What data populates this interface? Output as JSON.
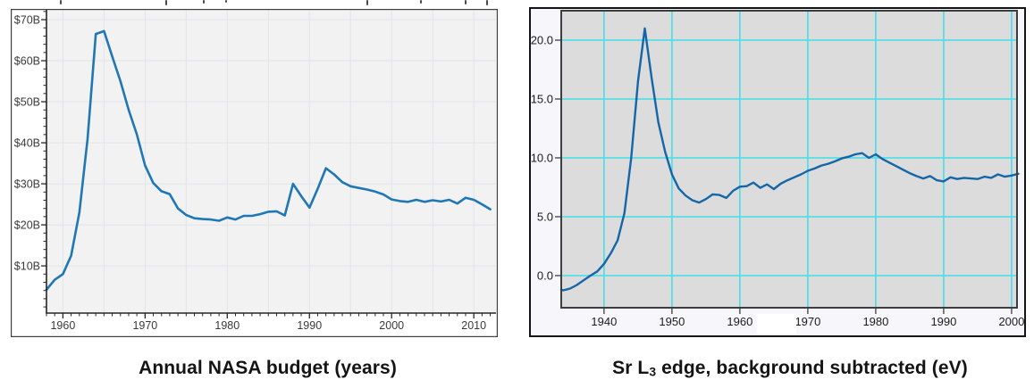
{
  "page": {
    "background": "#ffffff"
  },
  "captions": {
    "left": "Annual NASA budget (years)",
    "right_pre": "Sr L",
    "right_sub": "3",
    "right_post": " edge, background subtracted (eV)"
  },
  "chart_data": [
    {
      "type": "line",
      "title": "Annual NASA budget (years)",
      "xlabel": "",
      "ylabel": "",
      "xlim": [
        1958,
        2012.7
      ],
      "ylim": [
        -1.5,
        72.4
      ],
      "grid": "on",
      "legend": "none",
      "x_ticks": {
        "values": [
          1960,
          1970,
          1980,
          1990,
          2000,
          2010
        ],
        "labels": [
          "1960",
          "1970",
          "1980",
          "1990",
          "2000",
          "2010"
        ]
      },
      "y_ticks": {
        "values": [
          10,
          20,
          30,
          40,
          50,
          60,
          70
        ],
        "labels": [
          "$10B",
          "$20B",
          "$30B",
          "$40B",
          "$50B",
          "$60B",
          "$70B"
        ]
      },
      "x_minor_step": 1,
      "y_minor_step": 2,
      "x_grid_step": 5,
      "colors": {
        "line": "#1f77b4",
        "plot_bg": "#f2f2f3",
        "grid": "#e4e4e8",
        "axis": "#262626",
        "panel_bg": "#ffffff",
        "panel_border": "#3f3f3f",
        "tick_text": "#3a3a3a"
      },
      "series": [
        {
          "x": [
            1958,
            1959,
            1960,
            1961,
            1962,
            1963,
            1964,
            1965,
            1966,
            1967,
            1968,
            1969,
            1970,
            1971,
            1972,
            1973,
            1974,
            1975,
            1976,
            1977,
            1978,
            1979,
            1980,
            1981,
            1982,
            1983,
            1984,
            1985,
            1986,
            1987,
            1988,
            1989,
            1990,
            1991,
            1992,
            1993,
            1994,
            1995,
            1996,
            1997,
            1998,
            1999,
            2000,
            2001,
            2002,
            2003,
            2004,
            2005,
            2006,
            2007,
            2008,
            2009,
            2010,
            2011,
            2012
          ],
          "y": [
            4.2,
            6.6,
            8.0,
            12.5,
            23.0,
            41.0,
            66.5,
            67.2,
            61.0,
            55.0,
            48.0,
            42.0,
            34.5,
            30.2,
            28.2,
            27.5,
            24.0,
            22.4,
            21.6,
            21.4,
            21.3,
            21.0,
            21.8,
            21.3,
            22.2,
            22.2,
            22.6,
            23.2,
            23.3,
            22.3,
            30.0,
            27.0,
            24.2,
            28.8,
            33.8,
            32.3,
            30.4,
            29.4,
            29.0,
            28.6,
            28.1,
            27.4,
            26.2,
            25.8,
            25.6,
            26.1,
            25.6,
            26.0,
            25.7,
            26.1,
            25.2,
            26.6,
            26.1,
            25.0,
            23.8
          ]
        }
      ]
    },
    {
      "type": "line",
      "title": "Sr L3 edge, background subtracted (eV)",
      "xlabel": "",
      "ylabel": "",
      "xlim": [
        1933.7,
        2000.8
      ],
      "ylim": [
        -2.73,
        22.5
      ],
      "grid": "on",
      "legend": "none",
      "x_ticks": {
        "values": [
          1940,
          1950,
          1960,
          1970,
          1980,
          1990,
          2000
        ],
        "labels": [
          "1940",
          "1950",
          "1960",
          "1970",
          "1980",
          "1990",
          "2000"
        ]
      },
      "y_ticks": {
        "values": [
          0,
          5,
          10,
          15,
          20
        ],
        "labels": [
          "0.0",
          "5.0",
          "10.0",
          "15.0",
          "20.0"
        ]
      },
      "x_minor_step": 0,
      "y_minor_step": 0,
      "x_grid_step": 10,
      "colors": {
        "line": "#1566a8",
        "plot_bg": "#dcdcdc",
        "grid": "#55dee6",
        "axis": "#3d3d3d",
        "panel_bg": "#f7f7fb",
        "panel_border": "#141414",
        "tick_text": "#1c1c1c"
      },
      "series": [
        {
          "x": [
            1933.7,
            1934,
            1935,
            1936,
            1937,
            1938,
            1939,
            1940,
            1941,
            1942,
            1943,
            1944,
            1945,
            1946,
            1947,
            1948,
            1949,
            1950,
            1951,
            1952,
            1953,
            1954,
            1955,
            1956,
            1957,
            1958,
            1959,
            1960,
            1961,
            1962,
            1963,
            1964,
            1965,
            1966,
            1967,
            1968,
            1969,
            1970,
            1971,
            1972,
            1973,
            1974,
            1975,
            1976,
            1977,
            1978,
            1979,
            1980,
            1981,
            1982,
            1983,
            1984,
            1985,
            1986,
            1987,
            1988,
            1989,
            1990,
            1991,
            1992,
            1993,
            1994,
            1995,
            1996,
            1997,
            1998,
            1999,
            2000,
            2001
          ],
          "y": [
            -1.2,
            -1.25,
            -1.1,
            -0.8,
            -0.4,
            0.0,
            0.35,
            1.0,
            1.9,
            3.0,
            5.3,
            10.0,
            16.5,
            21.0,
            16.8,
            13.0,
            10.5,
            8.6,
            7.4,
            6.8,
            6.4,
            6.2,
            6.5,
            6.9,
            6.85,
            6.6,
            7.2,
            7.55,
            7.6,
            7.9,
            7.45,
            7.75,
            7.35,
            7.8,
            8.1,
            8.35,
            8.6,
            8.9,
            9.1,
            9.35,
            9.5,
            9.7,
            9.95,
            10.1,
            10.3,
            10.4,
            10.0,
            10.3,
            9.9,
            9.6,
            9.3,
            9.0,
            8.7,
            8.45,
            8.25,
            8.45,
            8.1,
            8.0,
            8.35,
            8.2,
            8.3,
            8.25,
            8.2,
            8.4,
            8.3,
            8.6,
            8.4,
            8.5,
            8.65
          ]
        }
      ]
    }
  ]
}
